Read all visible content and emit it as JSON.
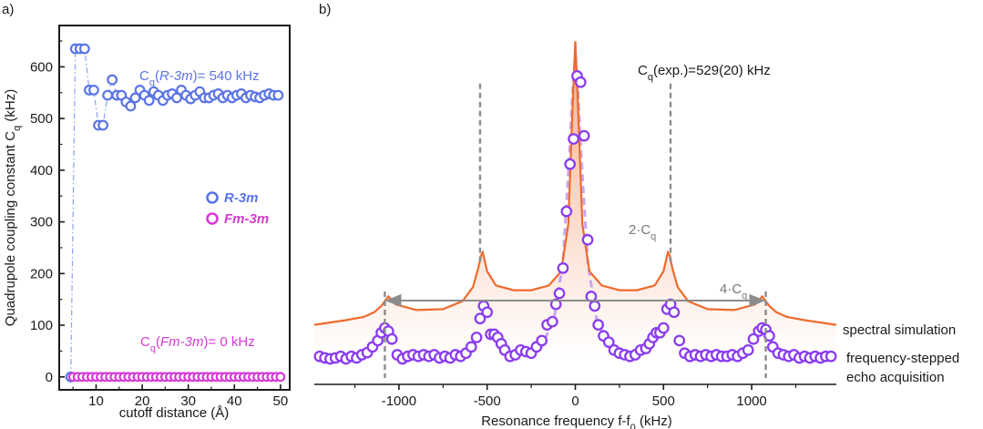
{
  "colors": {
    "r3m": "#5b74e6",
    "fm3m": "#d63ad6",
    "experimental": "#8a3cf0",
    "simulation": "#ef6a2c",
    "gray_arrow": "#8c8c8c",
    "axis": "#1a1a1a"
  },
  "chart_data": [
    {
      "type": "scatter",
      "panel_label": "a)",
      "xlabel": "cutoff distance (Å)",
      "ylabel_main": "Quadrupole coupling constant C",
      "ylabel_sub": "q",
      "ylabel_unit": " (kHz)",
      "xlim": [
        2,
        52
      ],
      "ylim": [
        -25,
        680
      ],
      "xticks": [
        10,
        20,
        30,
        40,
        50
      ],
      "yticks": [
        0,
        100,
        200,
        300,
        400,
        500,
        600
      ],
      "legend_placement": "center-right",
      "series": [
        {
          "name": "R-3m",
          "x": [
            4.5,
            5.5,
            6.5,
            7.5,
            8.5,
            9.5,
            10.5,
            11.5,
            12.5,
            13.5,
            14.5,
            15.5,
            16.5,
            17.5,
            18.5,
            19.5,
            20.5,
            21.5,
            22.5,
            23.5,
            24.5,
            25.5,
            26.5,
            27.5,
            28.5,
            29.5,
            30.5,
            31.5,
            32.5,
            33.5,
            34.5,
            35.5,
            36.5,
            37.5,
            38.5,
            39.5,
            40.5,
            41.5,
            42.5,
            43.5,
            44.5,
            45.5,
            46.5,
            47.5,
            48.5,
            49.5
          ],
          "y": [
            0,
            635,
            635,
            635,
            555,
            555,
            487,
            487,
            545,
            575,
            545,
            545,
            532,
            524,
            540,
            555,
            545,
            535,
            552,
            545,
            535,
            545,
            548,
            540,
            555,
            545,
            538,
            545,
            552,
            540,
            540,
            545,
            548,
            540,
            545,
            540,
            545,
            548,
            540,
            545,
            542,
            540,
            545,
            548,
            545,
            545
          ]
        },
        {
          "name": "Fm-3m",
          "x": [
            5,
            6,
            7,
            8,
            9,
            10,
            11,
            12,
            13,
            14,
            15,
            16,
            17,
            18,
            19,
            20,
            21,
            22,
            23,
            24,
            25,
            26,
            27,
            28,
            29,
            30,
            31,
            32,
            33,
            34,
            35,
            36,
            37,
            38,
            39,
            40,
            41,
            42,
            43,
            44,
            45,
            46,
            47,
            48,
            49,
            50
          ],
          "y": [
            0,
            0,
            0,
            0,
            0,
            0,
            0,
            0,
            0,
            0,
            0,
            0,
            0,
            0,
            0,
            0,
            0,
            0,
            0,
            0,
            0,
            0,
            0,
            0,
            0,
            0,
            0,
            0,
            0,
            0,
            0,
            0,
            0,
            0,
            0,
            0,
            0,
            0,
            0,
            0,
            0,
            0,
            0,
            0,
            0,
            0
          ]
        }
      ],
      "annotations": {
        "r3m_prefix": "C",
        "r3m_sub": "q",
        "r3m_paren_open": "(",
        "r3m_phase": "R-3m",
        "r3m_value": ")= 540 kHz",
        "fm3m_prefix": "C",
        "fm3m_sub": "q",
        "fm3m_paren_open": "(",
        "fm3m_phase": "Fm-3m",
        "fm3m_value": ")= 0 kHz"
      }
    },
    {
      "type": "line",
      "panel_label": "b)",
      "xlabel_main": "Resonance frequency f-f",
      "xlabel_sub": "0",
      "xlabel_unit": " (kHz)",
      "xlim": [
        -1480,
        1480
      ],
      "ylim": [
        -0.06,
        1.05
      ],
      "xticks": [
        -1000,
        -500,
        0,
        500,
        1000
      ],
      "yticks_shown": false,
      "series": [
        {
          "name": "spectral simulation",
          "style": "line with gradient fill",
          "x": [
            -1480,
            -1300,
            -1200,
            -1140,
            -1100,
            -1080,
            -1060,
            -1020,
            -900,
            -750,
            -640,
            -580,
            -550,
            -535,
            -525,
            -500,
            -450,
            -350,
            -250,
            -150,
            -80,
            -40,
            -15,
            0,
            15,
            40,
            80,
            150,
            250,
            350,
            450,
            500,
            525,
            535,
            550,
            580,
            640,
            750,
            900,
            1020,
            1060,
            1080,
            1100,
            1140,
            1200,
            1300,
            1480
          ],
          "y": [
            0.1,
            0.115,
            0.125,
            0.14,
            0.16,
            0.175,
            0.19,
            0.165,
            0.147,
            0.15,
            0.175,
            0.22,
            0.28,
            0.32,
            0.33,
            0.27,
            0.225,
            0.21,
            0.21,
            0.225,
            0.27,
            0.42,
            0.8,
            1.0,
            0.8,
            0.42,
            0.27,
            0.225,
            0.21,
            0.21,
            0.225,
            0.27,
            0.33,
            0.32,
            0.28,
            0.22,
            0.175,
            0.15,
            0.147,
            0.165,
            0.19,
            0.175,
            0.16,
            0.14,
            0.125,
            0.115,
            0.1
          ]
        },
        {
          "name": "frequency-stepped",
          "name_line2": "echo acquisition",
          "style": "open circles",
          "x": [
            -1450,
            -1420,
            -1390,
            -1360,
            -1330,
            -1300,
            -1270,
            -1240,
            -1210,
            -1180,
            -1150,
            -1120,
            -1100,
            -1080,
            -1060,
            -1040,
            -1010,
            -980,
            -950,
            -920,
            -890,
            -860,
            -830,
            -800,
            -770,
            -740,
            -710,
            -680,
            -650,
            -620,
            -590,
            -560,
            -540,
            -520,
            -500,
            -480,
            -460,
            -440,
            -420,
            -400,
            -370,
            -340,
            -310,
            -280,
            -250,
            -220,
            -190,
            -160,
            -130,
            -110,
            -90,
            -70,
            -50,
            -30,
            -10,
            10,
            30,
            50,
            70,
            90,
            110,
            130,
            160,
            190,
            220,
            250,
            280,
            310,
            340,
            370,
            400,
            420,
            440,
            460,
            480,
            500,
            520,
            540,
            560,
            590,
            620,
            650,
            680,
            710,
            740,
            770,
            800,
            830,
            860,
            890,
            920,
            950,
            980,
            1010,
            1040,
            1060,
            1080,
            1100,
            1120,
            1150,
            1180,
            1210,
            1240,
            1270,
            1300,
            1330,
            1360,
            1390,
            1420,
            1450
          ],
          "y": [
            0.0,
            -0.005,
            -0.008,
            -0.005,
            0.0,
            -0.008,
            0.0,
            -0.005,
            0.005,
            0.012,
            0.03,
            0.05,
            0.075,
            0.09,
            0.08,
            0.055,
            0.005,
            -0.008,
            0.0,
            0.005,
            0.0,
            0.005,
            0.0,
            0.005,
            -0.005,
            0.0,
            -0.005,
            0.005,
            0.0,
            0.01,
            0.03,
            0.06,
            0.12,
            0.16,
            0.14,
            0.07,
            0.07,
            0.06,
            0.04,
            0.02,
            0.0,
            0.005,
            0.02,
            0.015,
            0.01,
            0.03,
            0.05,
            0.1,
            0.11,
            0.165,
            0.2,
            0.28,
            0.46,
            0.61,
            0.69,
            0.89,
            0.87,
            0.7,
            0.37,
            0.19,
            0.16,
            0.1,
            0.065,
            0.045,
            0.02,
            0.01,
            0.005,
            0.0,
            0.005,
            0.02,
            0.025,
            0.04,
            0.06,
            0.075,
            0.075,
            0.09,
            0.15,
            0.165,
            0.14,
            0.05,
            0.01,
            0.0,
            0.005,
            0.0,
            0.005,
            0.0,
            0.005,
            0.0,
            0.0,
            0.005,
            0.0,
            0.01,
            0.02,
            0.055,
            0.08,
            0.09,
            0.085,
            0.065,
            0.03,
            0.01,
            0.005,
            0.0,
            0.005,
            -0.005,
            0.0,
            -0.005,
            0.0,
            -0.005,
            0.0,
            0.0
          ]
        }
      ],
      "annotations": {
        "cq_exp_prefix": "C",
        "cq_exp_sub": "q",
        "cq_exp_text": "(exp.)=529(20) kHz",
        "two_cq_prefix": "2·C",
        "two_cq_sub": "q",
        "four_cq_prefix": "4·C",
        "four_cq_sub": "q",
        "legend_sim": "spectral simulation",
        "legend_exp_line1": "frequency-stepped",
        "legend_exp_line2": "echo acquisition"
      },
      "markers": {
        "two_cq_range": [
          -540,
          540
        ],
        "four_cq_range": [
          -1080,
          1080
        ]
      }
    }
  ]
}
